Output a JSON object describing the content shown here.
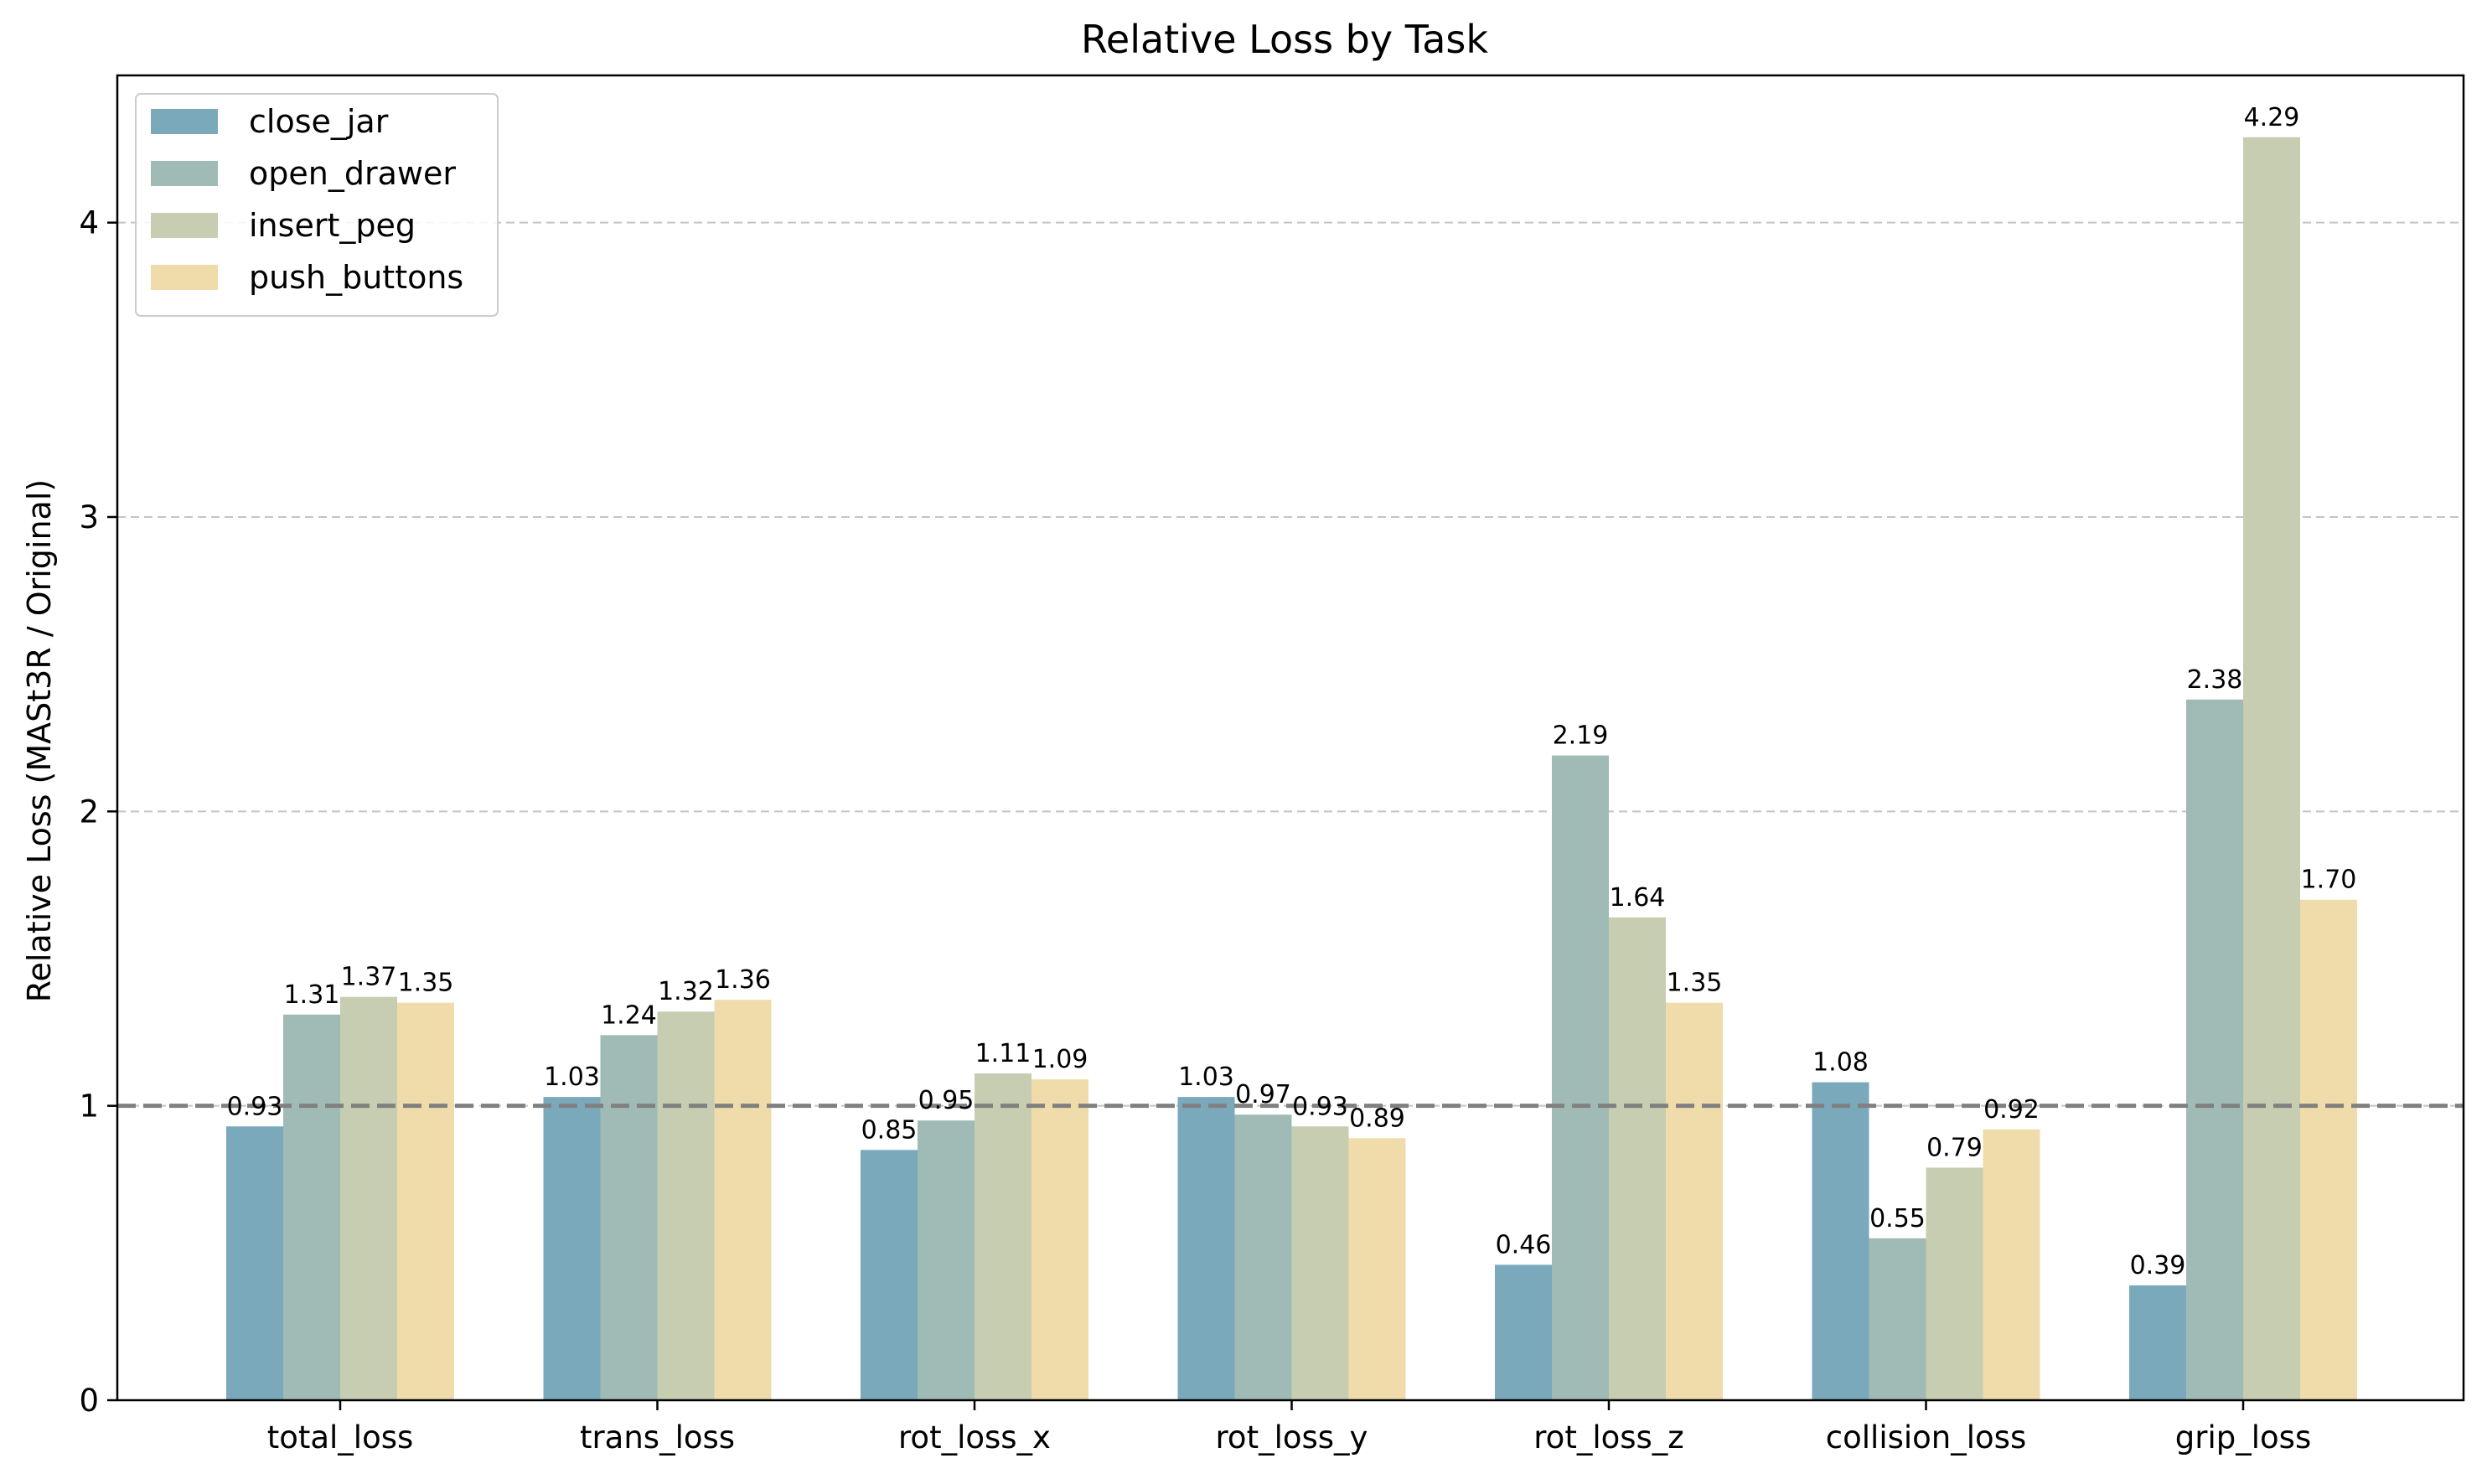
{
  "chart_data": {
    "type": "bar",
    "title": "Relative Loss by Task",
    "xlabel": "",
    "ylabel": "Relative Loss (MASt3R / Original)",
    "ylim": [
      0,
      4.5
    ],
    "yticks": [
      0,
      1,
      2,
      3,
      4
    ],
    "grid": "horizontal dashed",
    "reference_line": 1,
    "legend_position": "top-left",
    "categories": [
      "total_loss",
      "trans_loss",
      "rot_loss_x",
      "rot_loss_y",
      "rot_loss_z",
      "collision_loss",
      "grip_loss"
    ],
    "series": [
      {
        "name": "close_jar",
        "color": "#7aa9bb",
        "values": [
          0.93,
          1.03,
          0.85,
          1.03,
          0.46,
          1.08,
          0.39
        ],
        "labels": [
          "0.93",
          "1.03",
          "0.85",
          "1.03",
          "0.46",
          "1.08",
          "0.39"
        ]
      },
      {
        "name": "open_drawer",
        "color": "#a0bbb5",
        "values": [
          1.31,
          1.24,
          0.95,
          0.97,
          2.19,
          0.55,
          2.38
        ],
        "labels": [
          "1.31",
          "1.24",
          "0.95",
          "0.97",
          "2.19",
          "0.55",
          "2.38"
        ]
      },
      {
        "name": "insert_peg",
        "color": "#c6cdb1",
        "values": [
          1.37,
          1.32,
          1.11,
          0.93,
          1.64,
          0.79,
          4.29
        ],
        "labels": [
          "1.37",
          "1.32",
          "1.11",
          "0.93",
          "1.64",
          "0.79",
          "4.29"
        ]
      },
      {
        "name": "push_buttons",
        "color": "#efdcaa",
        "values": [
          1.35,
          1.36,
          1.09,
          0.89,
          1.35,
          0.92,
          1.7
        ],
        "labels": [
          "1.35",
          "1.36",
          "1.09",
          "0.89",
          "1.35",
          "0.92",
          "1.70"
        ]
      }
    ]
  }
}
